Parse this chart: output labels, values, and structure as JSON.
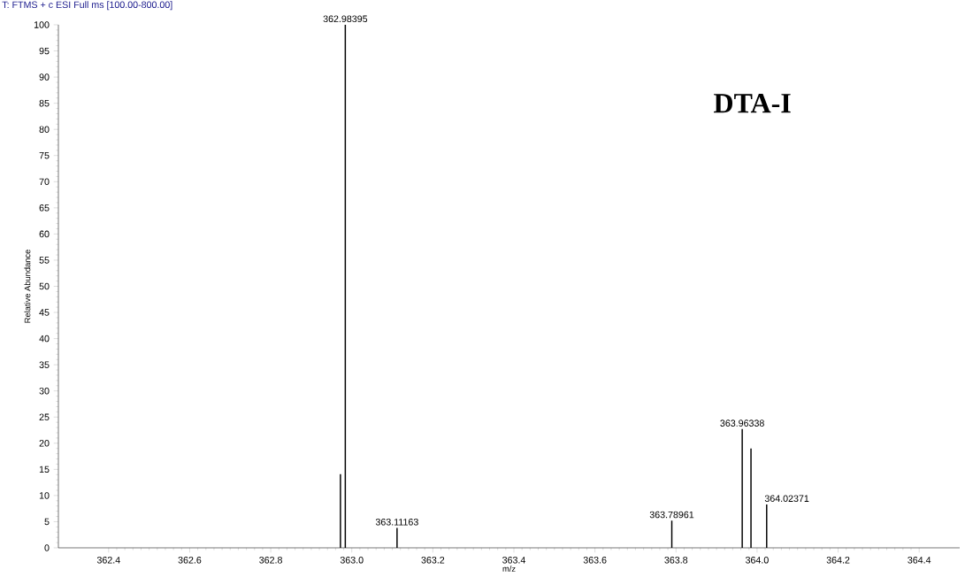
{
  "chart_data": {
    "type": "bar",
    "title": "T: FTMS + c ESI Full ms [100.00-800.00]",
    "xlabel": "m/z",
    "ylabel": "Relative Abundance",
    "annotations": [
      "DTA-I",
      {
        "text": "362.98395",
        "x": 362.98395,
        "y": 100
      },
      {
        "text": "363.11163",
        "x": 363.11163,
        "y": 3.8
      },
      {
        "text": "363.78961",
        "x": 363.78961,
        "y": 5.2
      },
      {
        "text": "363.96338",
        "x": 363.96338,
        "y": 22.7
      },
      {
        "text": "364.02371",
        "x": 364.02371,
        "y": 8.3
      }
    ],
    "x": [
      362.972,
      362.98395,
      363.11163,
      363.78961,
      363.96338,
      363.985,
      364.02371
    ],
    "values": [
      14.1,
      100,
      3.8,
      5.2,
      22.7,
      19.0,
      8.3
    ],
    "color": "#000000",
    "xlim": [
      362.276,
      364.5
    ],
    "xticks": [
      362.4,
      362.6,
      362.8,
      {
        "value": 363,
        "label": "363.0"
      },
      363.2,
      363.4,
      363.6,
      363.8,
      {
        "value": 364,
        "label": "364.0"
      },
      364.2,
      364.4
    ],
    "ylim": [
      0,
      100
    ],
    "yticks": [
      0,
      5,
      10,
      15,
      20,
      25,
      30,
      35,
      40,
      45,
      50,
      55,
      60,
      65,
      70,
      75,
      80,
      85,
      90,
      95,
      100
    ],
    "grid": false
  }
}
